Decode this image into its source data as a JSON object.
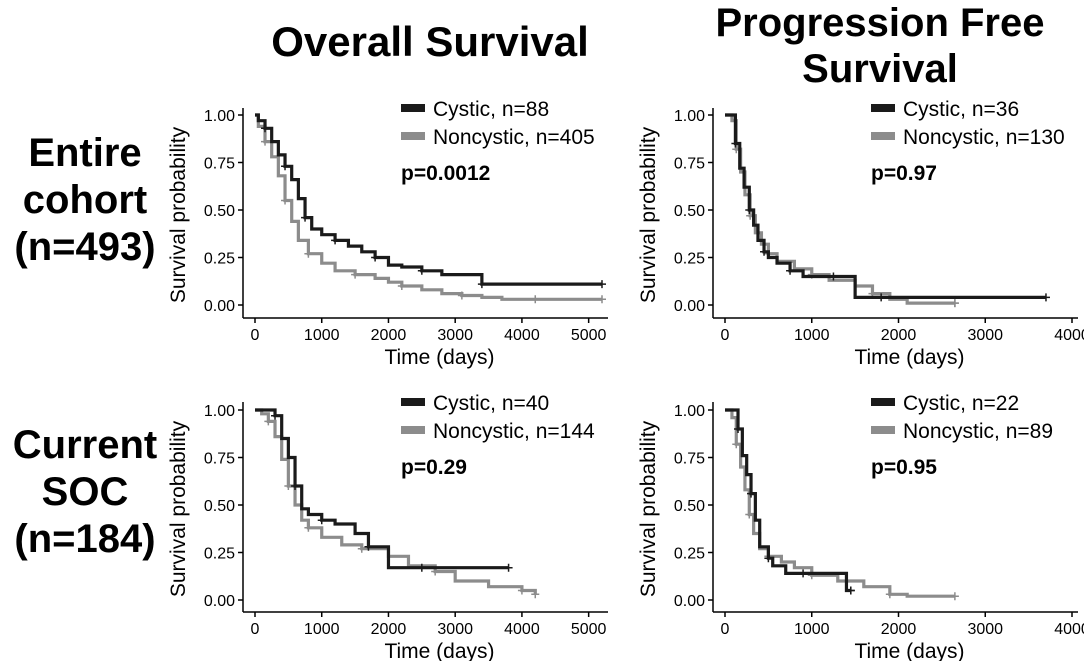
{
  "column_titles": [
    "Overall Survival",
    "Progression Free\nSurvival"
  ],
  "row_titles": [
    "Entire\ncohort\n(n=493)",
    "Current\nSOC\n(n=184)"
  ],
  "colors": {
    "cystic": "#1a1a1a",
    "noncystic": "#8c8c8c",
    "axis": "#000000"
  },
  "chart_data": [
    {
      "type": "line",
      "subtype": "kaplan-meier",
      "title": "Overall Survival — Entire cohort",
      "xlabel": "Time (days)",
      "ylabel": "Survival probability",
      "xlim": [
        0,
        5200
      ],
      "ylim": [
        0,
        1
      ],
      "xticks": [
        0,
        1000,
        2000,
        3000,
        4000,
        5000
      ],
      "xtick_labels": [
        "0",
        "1000",
        "2000",
        "3000",
        "4000",
        "5000"
      ],
      "yticks": [
        0,
        0.25,
        0.5,
        0.75,
        1.0
      ],
      "ytick_labels": [
        "0.00",
        "0.25",
        "0.50",
        "0.75",
        "1.00"
      ],
      "pvalue": "p=0.0012",
      "series": [
        {
          "name": "Cystic, n=88",
          "group": "cystic",
          "x": [
            0,
            50,
            150,
            250,
            350,
            450,
            550,
            650,
            750,
            850,
            1000,
            1200,
            1400,
            1600,
            1800,
            2000,
            2200,
            2500,
            2800,
            3100,
            3400,
            4000,
            5200
          ],
          "y": [
            1.0,
            0.97,
            0.93,
            0.86,
            0.79,
            0.73,
            0.66,
            0.56,
            0.46,
            0.4,
            0.37,
            0.34,
            0.31,
            0.28,
            0.25,
            0.21,
            0.2,
            0.18,
            0.16,
            0.16,
            0.11,
            0.11,
            0.11
          ]
        },
        {
          "name": "Noncystic, n=405",
          "group": "noncystic",
          "x": [
            0,
            50,
            150,
            250,
            350,
            450,
            550,
            650,
            800,
            1000,
            1200,
            1500,
            1800,
            2000,
            2200,
            2500,
            2800,
            3100,
            3400,
            3700,
            4200,
            5200
          ],
          "y": [
            1.0,
            0.94,
            0.86,
            0.78,
            0.68,
            0.55,
            0.44,
            0.34,
            0.27,
            0.22,
            0.18,
            0.16,
            0.14,
            0.12,
            0.1,
            0.08,
            0.06,
            0.05,
            0.04,
            0.03,
            0.03,
            0.03
          ]
        }
      ]
    },
    {
      "type": "line",
      "subtype": "kaplan-meier",
      "title": "Progression Free Survival — Entire cohort",
      "xlabel": "Time (days)",
      "ylabel": "Survival probability",
      "xlim": [
        0,
        4000
      ],
      "ylim": [
        0,
        1
      ],
      "xticks": [
        0,
        1000,
        2000,
        3000,
        4000
      ],
      "xtick_labels": [
        "0",
        "1000",
        "2000",
        "3000",
        "4000"
      ],
      "yticks": [
        0,
        0.25,
        0.5,
        0.75,
        1.0
      ],
      "ytick_labels": [
        "0.00",
        "0.25",
        "0.50",
        "0.75",
        "1.00"
      ],
      "pvalue": "p=0.97",
      "series": [
        {
          "name": "Cystic, n=36",
          "group": "cystic",
          "x": [
            0,
            80,
            120,
            170,
            220,
            280,
            330,
            380,
            450,
            500,
            600,
            750,
            900,
            1100,
            1250,
            1300,
            1500,
            1800,
            2500,
            3700
          ],
          "y": [
            1.0,
            1.0,
            0.85,
            0.72,
            0.62,
            0.5,
            0.42,
            0.34,
            0.28,
            0.25,
            0.22,
            0.18,
            0.15,
            0.15,
            0.15,
            0.15,
            0.04,
            0.04,
            0.04,
            0.04
          ]
        },
        {
          "name": "Noncystic, n=130",
          "group": "noncystic",
          "x": [
            0,
            80,
            130,
            180,
            230,
            290,
            350,
            420,
            500,
            600,
            800,
            1000,
            1200,
            1500,
            1700,
            1900,
            2100,
            2650
          ],
          "y": [
            1.0,
            0.97,
            0.82,
            0.7,
            0.58,
            0.47,
            0.38,
            0.32,
            0.27,
            0.23,
            0.19,
            0.16,
            0.13,
            0.1,
            0.06,
            0.03,
            0.01,
            0.01
          ]
        }
      ]
    },
    {
      "type": "line",
      "subtype": "kaplan-meier",
      "title": "Overall Survival — Current SOC",
      "xlabel": "Time (days)",
      "ylabel": "Survival probability",
      "xlim": [
        0,
        5200
      ],
      "ylim": [
        0,
        1
      ],
      "xticks": [
        0,
        1000,
        2000,
        3000,
        4000,
        5000
      ],
      "xtick_labels": [
        "0",
        "1000",
        "2000",
        "3000",
        "4000",
        "5000"
      ],
      "yticks": [
        0,
        0.25,
        0.5,
        0.75,
        1.0
      ],
      "ytick_labels": [
        "0.00",
        "0.25",
        "0.50",
        "0.75",
        "1.00"
      ],
      "pvalue": "p=0.29",
      "series": [
        {
          "name": "Cystic, n=40",
          "group": "cystic",
          "x": [
            0,
            200,
            300,
            400,
            500,
            600,
            700,
            800,
            1000,
            1200,
            1500,
            1700,
            2000,
            2200,
            2500,
            3000,
            3800
          ],
          "y": [
            1.0,
            1.0,
            0.97,
            0.85,
            0.75,
            0.6,
            0.48,
            0.45,
            0.42,
            0.4,
            0.35,
            0.28,
            0.17,
            0.17,
            0.17,
            0.17,
            0.17
          ]
        },
        {
          "name": "Noncystic, n=144",
          "group": "noncystic",
          "x": [
            0,
            100,
            200,
            300,
            400,
            500,
            600,
            700,
            800,
            1000,
            1300,
            1600,
            2000,
            2300,
            2700,
            3000,
            3500,
            4000,
            4200
          ],
          "y": [
            1.0,
            0.98,
            0.94,
            0.86,
            0.74,
            0.6,
            0.5,
            0.42,
            0.38,
            0.33,
            0.29,
            0.27,
            0.23,
            0.18,
            0.15,
            0.1,
            0.07,
            0.05,
            0.03
          ]
        }
      ]
    },
    {
      "type": "line",
      "subtype": "kaplan-meier",
      "title": "Progression Free Survival — Current SOC",
      "xlabel": "Time (days)",
      "ylabel": "Survival probability",
      "xlim": [
        0,
        4000
      ],
      "ylim": [
        0,
        1
      ],
      "xticks": [
        0,
        1000,
        2000,
        3000,
        4000
      ],
      "xtick_labels": [
        "0",
        "1000",
        "2000",
        "3000",
        "4000"
      ],
      "yticks": [
        0,
        0.25,
        0.5,
        0.75,
        1.0
      ],
      "ytick_labels": [
        "0.00",
        "0.25",
        "0.50",
        "0.75",
        "1.00"
      ],
      "pvalue": "p=0.95",
      "series": [
        {
          "name": "Cystic, n=22",
          "group": "cystic",
          "x": [
            0,
            80,
            150,
            200,
            250,
            300,
            350,
            400,
            500,
            550,
            700,
            900,
            1200,
            1400,
            1450
          ],
          "y": [
            1.0,
            1.0,
            0.9,
            0.76,
            0.66,
            0.56,
            0.42,
            0.28,
            0.22,
            0.18,
            0.14,
            0.14,
            0.14,
            0.05,
            0.05
          ]
        },
        {
          "name": "Noncystic, n=89",
          "group": "noncystic",
          "x": [
            0,
            80,
            130,
            180,
            230,
            280,
            330,
            400,
            500,
            650,
            800,
            1000,
            1300,
            1600,
            1900,
            2100,
            2650
          ],
          "y": [
            1.0,
            0.96,
            0.82,
            0.7,
            0.58,
            0.45,
            0.35,
            0.27,
            0.23,
            0.2,
            0.17,
            0.13,
            0.1,
            0.07,
            0.03,
            0.02,
            0.02
          ]
        }
      ]
    }
  ]
}
